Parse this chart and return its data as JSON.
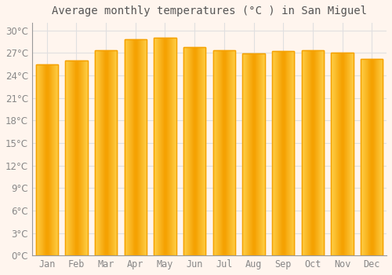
{
  "title": "Average monthly temperatures (°C ) in San Miguel",
  "months": [
    "Jan",
    "Feb",
    "Mar",
    "Apr",
    "May",
    "Jun",
    "Jul",
    "Aug",
    "Sep",
    "Oct",
    "Nov",
    "Dec"
  ],
  "values": [
    25.5,
    26.0,
    27.3,
    28.8,
    29.0,
    27.8,
    27.3,
    26.9,
    27.2,
    27.3,
    27.0,
    26.2
  ],
  "bar_color_center": "#FFD04B",
  "bar_color_edge": "#F5A000",
  "background_color": "#FFF5EE",
  "plot_bg_color": "#FFF5EE",
  "grid_color": "#E0E0E0",
  "text_color": "#888888",
  "title_color": "#555555",
  "ylim": [
    0,
    31
  ],
  "yticks": [
    0,
    3,
    6,
    9,
    12,
    15,
    18,
    21,
    24,
    27,
    30
  ],
  "title_fontsize": 10,
  "tick_fontsize": 8.5,
  "bar_width": 0.75
}
